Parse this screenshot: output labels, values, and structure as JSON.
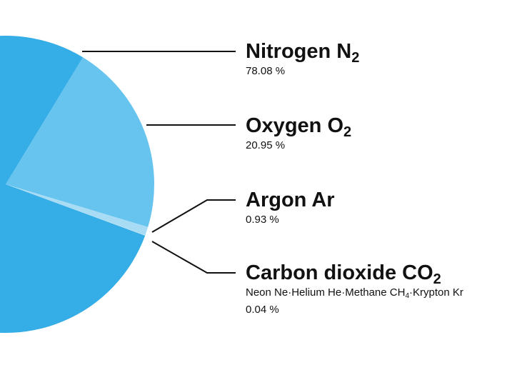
{
  "chart_data": {
    "type": "pie",
    "slices": [
      {
        "name": "Nitrogen",
        "formula_base": "N",
        "formula_sub": "2",
        "value": 78.08,
        "value_label": "78.08 %",
        "color": "#35ade6"
      },
      {
        "name": "Oxygen",
        "formula_base": "O",
        "formula_sub": "2",
        "value": 20.95,
        "value_label": "20.95 %",
        "color": "#66c4ef"
      },
      {
        "name": "Argon",
        "formula_base": "Ar",
        "formula_sub": "",
        "value": 0.93,
        "value_label": "0.93 %",
        "color": "#a8dcf5"
      },
      {
        "name": "Carbon dioxide",
        "formula_base": "CO",
        "formula_sub": "2",
        "value": 0.04,
        "value_label": "0.04 %",
        "color": "#d4eefa",
        "note": {
          "neon": "Neon Ne",
          "helium": "Helium He",
          "methane_base": "Methane CH",
          "methane_sub": "4",
          "krypton": "Krypton Kr",
          "separator": "·"
        }
      }
    ],
    "leader_line_color": "#111111"
  }
}
